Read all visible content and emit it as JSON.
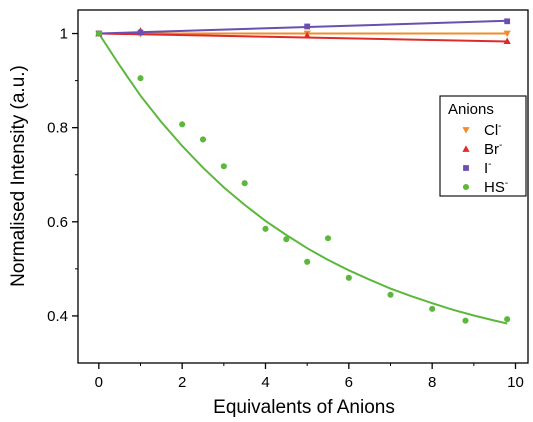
{
  "chart_data": {
    "type": "scatter",
    "title": "",
    "xlabel": "Equivalents of Anions",
    "ylabel": "Normalised Intensity (a.u.)",
    "xlim": [
      -0.5,
      10.3
    ],
    "ylim": [
      0.3,
      1.05
    ],
    "xticks": [
      0,
      2,
      4,
      6,
      8,
      10
    ],
    "xtick_labels": [
      "0",
      "2",
      "4",
      "6",
      "8",
      "10"
    ],
    "yticks": [
      0.4,
      0.6,
      0.8,
      1.0
    ],
    "ytick_labels": [
      "0.4",
      "0.6",
      "0.8",
      "1"
    ],
    "grid": false,
    "legend": {
      "title": "Anions",
      "position": "top-right",
      "entries": [
        {
          "label": "Cl",
          "superscript": "-",
          "marker": "triangle-down",
          "color": "#f28c28"
        },
        {
          "label": "Br",
          "superscript": "-",
          "marker": "triangle-up",
          "color": "#e02a2a"
        },
        {
          "label": "I",
          "superscript": "-",
          "marker": "square",
          "color": "#6a4fb0"
        },
        {
          "label": "HS",
          "superscript": "-",
          "marker": "circle",
          "color": "#5cb83c"
        }
      ]
    },
    "series": [
      {
        "name": "Cl-",
        "marker": "triangle-down",
        "color": "#f28c28",
        "points": [
          [
            0,
            1.0
          ],
          [
            1,
            0.999
          ],
          [
            5,
            1.0
          ],
          [
            9.8,
            1.0
          ]
        ],
        "fit": [
          [
            0,
            1.0
          ],
          [
            9.8,
            1.0
          ]
        ]
      },
      {
        "name": "Br-",
        "marker": "triangle-up",
        "color": "#e02a2a",
        "points": [
          [
            0,
            1.0
          ],
          [
            1,
            1.006
          ],
          [
            5,
            0.996
          ],
          [
            9.8,
            0.984
          ]
        ],
        "fit": [
          [
            0,
            1.0
          ],
          [
            9.8,
            0.983
          ]
        ]
      },
      {
        "name": "I-",
        "marker": "square",
        "color": "#6a4fb0",
        "points": [
          [
            0,
            1.0
          ],
          [
            1,
            1.002
          ],
          [
            5,
            1.015
          ],
          [
            9.8,
            1.026
          ]
        ],
        "fit": [
          [
            0,
            1.0
          ],
          [
            9.8,
            1.027
          ]
        ]
      },
      {
        "name": "HS-",
        "marker": "circle",
        "color": "#5cb83c",
        "points": [
          [
            0,
            1.0
          ],
          [
            1,
            0.905
          ],
          [
            2,
            0.807
          ],
          [
            2.5,
            0.775
          ],
          [
            3,
            0.718
          ],
          [
            3.5,
            0.682
          ],
          [
            4,
            0.585
          ],
          [
            4.5,
            0.563
          ],
          [
            5,
            0.515
          ],
          [
            5.5,
            0.565
          ],
          [
            6,
            0.481
          ],
          [
            7,
            0.445
          ],
          [
            8,
            0.415
          ],
          [
            8.8,
            0.39
          ],
          [
            9.8,
            0.393
          ]
        ],
        "fit": [
          [
            0,
            1.0
          ],
          [
            0.5,
            0.932
          ],
          [
            1,
            0.868
          ],
          [
            1.5,
            0.812
          ],
          [
            2,
            0.761
          ],
          [
            2.5,
            0.715
          ],
          [
            3,
            0.673
          ],
          [
            3.5,
            0.636
          ],
          [
            4,
            0.602
          ],
          [
            4.5,
            0.572
          ],
          [
            5,
            0.544
          ],
          [
            5.5,
            0.519
          ],
          [
            6,
            0.497
          ],
          [
            6.5,
            0.477
          ],
          [
            7,
            0.458
          ],
          [
            7.5,
            0.442
          ],
          [
            8,
            0.427
          ],
          [
            8.5,
            0.413
          ],
          [
            9,
            0.401
          ],
          [
            9.5,
            0.39
          ],
          [
            9.8,
            0.384
          ]
        ]
      }
    ]
  }
}
